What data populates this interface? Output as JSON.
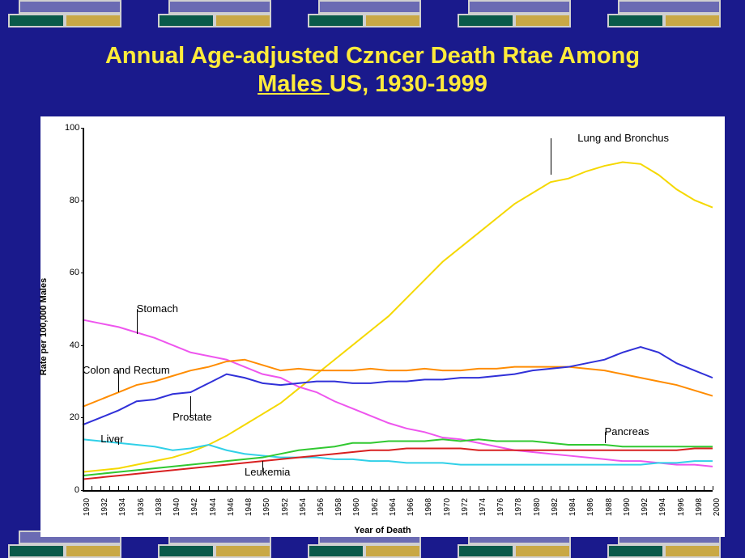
{
  "title_line1": "Annual Age-adjusted Czncer Death Rtae Among",
  "title_line2a": "Males ",
  "title_line2b": "US, 1930-1999",
  "background_color": "#1a1a8c",
  "title_color": "#ffeb3b",
  "chart": {
    "type": "line",
    "background_color": "#ffffff",
    "xlabel": "Year of Death",
    "ylabel": "Rate per 100,000 Males",
    "label_fontsize": 11,
    "xlim": [
      1930,
      2000
    ],
    "ylim": [
      0,
      100
    ],
    "ytick_step": 20,
    "xtick_step": 2,
    "line_width": 2,
    "series": [
      {
        "name": "Lung and Bronchus",
        "color": "#f5d800",
        "label_x": 1985,
        "label_y": 97,
        "pointer_to_x": 1982,
        "pointer_to_y": 87,
        "data": [
          [
            1930,
            5
          ],
          [
            1932,
            5.5
          ],
          [
            1934,
            6
          ],
          [
            1936,
            7
          ],
          [
            1938,
            8
          ],
          [
            1940,
            9
          ],
          [
            1942,
            10.5
          ],
          [
            1944,
            12.5
          ],
          [
            1946,
            15
          ],
          [
            1948,
            18
          ],
          [
            1950,
            21
          ],
          [
            1952,
            24
          ],
          [
            1954,
            28
          ],
          [
            1956,
            32
          ],
          [
            1958,
            36
          ],
          [
            1960,
            40
          ],
          [
            1962,
            44
          ],
          [
            1964,
            48
          ],
          [
            1966,
            53
          ],
          [
            1968,
            58
          ],
          [
            1970,
            63
          ],
          [
            1972,
            67
          ],
          [
            1974,
            71
          ],
          [
            1976,
            75
          ],
          [
            1978,
            79
          ],
          [
            1980,
            82
          ],
          [
            1982,
            85
          ],
          [
            1984,
            86
          ],
          [
            1986,
            88
          ],
          [
            1988,
            89.5
          ],
          [
            1990,
            90.5
          ],
          [
            1992,
            90
          ],
          [
            1994,
            87
          ],
          [
            1996,
            83
          ],
          [
            1998,
            80
          ],
          [
            2000,
            78
          ]
        ]
      },
      {
        "name": "Stomach",
        "color": "#ee55ee",
        "label_x": 1936,
        "label_y": 50,
        "pointer_to_x": 1936,
        "pointer_to_y": 43,
        "data": [
          [
            1930,
            47
          ],
          [
            1932,
            46
          ],
          [
            1934,
            45
          ],
          [
            1936,
            43.5
          ],
          [
            1938,
            42
          ],
          [
            1940,
            40
          ],
          [
            1942,
            38
          ],
          [
            1944,
            37
          ],
          [
            1946,
            36
          ],
          [
            1948,
            34
          ],
          [
            1950,
            32
          ],
          [
            1952,
            31
          ],
          [
            1954,
            28.5
          ],
          [
            1956,
            27
          ],
          [
            1958,
            24.5
          ],
          [
            1960,
            22.5
          ],
          [
            1962,
            20.5
          ],
          [
            1964,
            18.5
          ],
          [
            1966,
            17
          ],
          [
            1968,
            16
          ],
          [
            1970,
            14.5
          ],
          [
            1972,
            14
          ],
          [
            1974,
            13
          ],
          [
            1976,
            12
          ],
          [
            1978,
            11
          ],
          [
            1980,
            10.5
          ],
          [
            1982,
            10
          ],
          [
            1984,
            9.5
          ],
          [
            1986,
            9
          ],
          [
            1988,
            8.5
          ],
          [
            1990,
            8
          ],
          [
            1992,
            8
          ],
          [
            1994,
            7.5
          ],
          [
            1996,
            7
          ],
          [
            1998,
            7
          ],
          [
            2000,
            6.5
          ]
        ]
      },
      {
        "name": "Colon and Rectum",
        "color": "#ff8c00",
        "label_x": 1930,
        "label_y": 33,
        "pointer_to_x": 1934,
        "pointer_to_y": 27,
        "data": [
          [
            1930,
            23
          ],
          [
            1932,
            25
          ],
          [
            1934,
            27
          ],
          [
            1936,
            29
          ],
          [
            1938,
            30
          ],
          [
            1940,
            31.5
          ],
          [
            1942,
            33
          ],
          [
            1944,
            34
          ],
          [
            1946,
            35.5
          ],
          [
            1948,
            36
          ],
          [
            1950,
            34.5
          ],
          [
            1952,
            33
          ],
          [
            1954,
            33.5
          ],
          [
            1956,
            33
          ],
          [
            1958,
            33
          ],
          [
            1960,
            33
          ],
          [
            1962,
            33.5
          ],
          [
            1964,
            33
          ],
          [
            1966,
            33
          ],
          [
            1968,
            33.5
          ],
          [
            1970,
            33
          ],
          [
            1972,
            33
          ],
          [
            1974,
            33.5
          ],
          [
            1976,
            33.5
          ],
          [
            1978,
            34
          ],
          [
            1980,
            34
          ],
          [
            1982,
            34
          ],
          [
            1984,
            34
          ],
          [
            1986,
            33.5
          ],
          [
            1988,
            33
          ],
          [
            1990,
            32
          ],
          [
            1992,
            31
          ],
          [
            1994,
            30
          ],
          [
            1996,
            29
          ],
          [
            1998,
            27.5
          ],
          [
            2000,
            26
          ]
        ]
      },
      {
        "name": "Prostate",
        "color": "#3030d8",
        "label_x": 1940,
        "label_y": 20,
        "pointer_to_x": 1942,
        "pointer_to_y": 26,
        "data": [
          [
            1930,
            18
          ],
          [
            1932,
            20
          ],
          [
            1934,
            22
          ],
          [
            1936,
            24.5
          ],
          [
            1938,
            25
          ],
          [
            1940,
            26.5
          ],
          [
            1942,
            27
          ],
          [
            1944,
            29.5
          ],
          [
            1946,
            32
          ],
          [
            1948,
            31
          ],
          [
            1950,
            29.5
          ],
          [
            1952,
            29
          ],
          [
            1954,
            29.5
          ],
          [
            1956,
            30
          ],
          [
            1958,
            30
          ],
          [
            1960,
            29.5
          ],
          [
            1962,
            29.5
          ],
          [
            1964,
            30
          ],
          [
            1966,
            30
          ],
          [
            1968,
            30.5
          ],
          [
            1970,
            30.5
          ],
          [
            1972,
            31
          ],
          [
            1974,
            31
          ],
          [
            1976,
            31.5
          ],
          [
            1978,
            32
          ],
          [
            1980,
            33
          ],
          [
            1982,
            33.5
          ],
          [
            1984,
            34
          ],
          [
            1986,
            35
          ],
          [
            1988,
            36
          ],
          [
            1990,
            38
          ],
          [
            1992,
            39.5
          ],
          [
            1994,
            38
          ],
          [
            1996,
            35
          ],
          [
            1998,
            33
          ],
          [
            2000,
            31
          ]
        ]
      },
      {
        "name": "Liver",
        "color": "#30d0e8",
        "label_x": 1932,
        "label_y": 14,
        "pointer_to_x": 1934,
        "pointer_to_y": 12.5,
        "data": [
          [
            1930,
            14
          ],
          [
            1932,
            13.5
          ],
          [
            1934,
            13
          ],
          [
            1936,
            12.5
          ],
          [
            1938,
            12
          ],
          [
            1940,
            11
          ],
          [
            1942,
            11.5
          ],
          [
            1944,
            12.5
          ],
          [
            1946,
            11
          ],
          [
            1948,
            10
          ],
          [
            1950,
            9.5
          ],
          [
            1952,
            9
          ],
          [
            1954,
            9
          ],
          [
            1956,
            9
          ],
          [
            1958,
            8.5
          ],
          [
            1960,
            8.5
          ],
          [
            1962,
            8
          ],
          [
            1964,
            8
          ],
          [
            1966,
            7.5
          ],
          [
            1968,
            7.5
          ],
          [
            1970,
            7.5
          ],
          [
            1972,
            7
          ],
          [
            1974,
            7
          ],
          [
            1976,
            7
          ],
          [
            1978,
            7
          ],
          [
            1980,
            7
          ],
          [
            1982,
            7
          ],
          [
            1984,
            7
          ],
          [
            1986,
            7
          ],
          [
            1988,
            7
          ],
          [
            1990,
            7
          ],
          [
            1992,
            7
          ],
          [
            1994,
            7.5
          ],
          [
            1996,
            7.5
          ],
          [
            1998,
            8
          ],
          [
            2000,
            8
          ]
        ]
      },
      {
        "name": "Pancreas",
        "color": "#30c830",
        "label_x": 1988,
        "label_y": 16,
        "pointer_to_x": 1988,
        "pointer_to_y": 13,
        "data": [
          [
            1930,
            4
          ],
          [
            1932,
            4.5
          ],
          [
            1934,
            5
          ],
          [
            1936,
            5.5
          ],
          [
            1938,
            6
          ],
          [
            1940,
            6.5
          ],
          [
            1942,
            7
          ],
          [
            1944,
            7.5
          ],
          [
            1946,
            8
          ],
          [
            1948,
            8.5
          ],
          [
            1950,
            9
          ],
          [
            1952,
            10
          ],
          [
            1954,
            11
          ],
          [
            1956,
            11.5
          ],
          [
            1958,
            12
          ],
          [
            1960,
            13
          ],
          [
            1962,
            13
          ],
          [
            1964,
            13.5
          ],
          [
            1966,
            13.5
          ],
          [
            1968,
            13.5
          ],
          [
            1970,
            14
          ],
          [
            1972,
            13.5
          ],
          [
            1974,
            14
          ],
          [
            1976,
            13.5
          ],
          [
            1978,
            13.5
          ],
          [
            1980,
            13.5
          ],
          [
            1982,
            13
          ],
          [
            1984,
            12.5
          ],
          [
            1986,
            12.5
          ],
          [
            1988,
            12.5
          ],
          [
            1990,
            12
          ],
          [
            1992,
            12
          ],
          [
            1994,
            12
          ],
          [
            1996,
            12
          ],
          [
            1998,
            12
          ],
          [
            2000,
            12
          ]
        ]
      },
      {
        "name": "Leukemia",
        "color": "#d82020",
        "label_x": 1948,
        "label_y": 5,
        "pointer_to_x": 1950,
        "pointer_to_y": 8,
        "data": [
          [
            1930,
            3
          ],
          [
            1932,
            3.5
          ],
          [
            1934,
            4
          ],
          [
            1936,
            4.5
          ],
          [
            1938,
            5
          ],
          [
            1940,
            5.5
          ],
          [
            1942,
            6
          ],
          [
            1944,
            6.5
          ],
          [
            1946,
            7
          ],
          [
            1948,
            7.5
          ],
          [
            1950,
            8
          ],
          [
            1952,
            8.5
          ],
          [
            1954,
            9
          ],
          [
            1956,
            9.5
          ],
          [
            1958,
            10
          ],
          [
            1960,
            10.5
          ],
          [
            1962,
            11
          ],
          [
            1964,
            11
          ],
          [
            1966,
            11.5
          ],
          [
            1968,
            11.5
          ],
          [
            1970,
            11.5
          ],
          [
            1972,
            11.5
          ],
          [
            1974,
            11
          ],
          [
            1976,
            11
          ],
          [
            1978,
            11
          ],
          [
            1980,
            11
          ],
          [
            1982,
            11
          ],
          [
            1984,
            11
          ],
          [
            1986,
            11
          ],
          [
            1988,
            11
          ],
          [
            1990,
            11
          ],
          [
            1992,
            11
          ],
          [
            1994,
            11
          ],
          [
            1996,
            11
          ],
          [
            1998,
            11.5
          ],
          [
            2000,
            11.5
          ]
        ]
      }
    ]
  }
}
